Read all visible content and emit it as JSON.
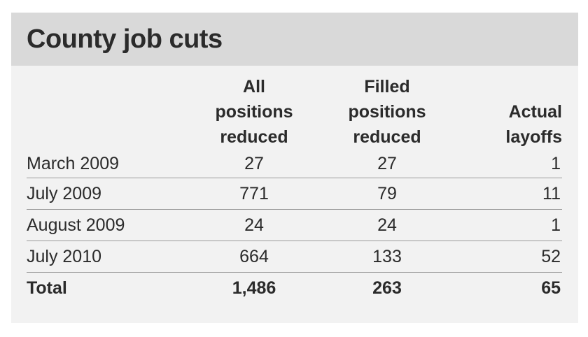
{
  "title": "County job cuts",
  "columns": {
    "all_positions": [
      "All",
      "positions",
      "reduced"
    ],
    "filled_positions": [
      "Filled",
      "positions",
      "reduced"
    ],
    "actual_layoffs": [
      "Actual",
      "layoffs"
    ]
  },
  "rows": [
    {
      "period": "March 2009",
      "all": "27",
      "filled": "27",
      "layoffs": "1"
    },
    {
      "period": "July 2009",
      "all": "771",
      "filled": "79",
      "layoffs": "11"
    },
    {
      "period": "August 2009",
      "all": "24",
      "filled": "24",
      "layoffs": "1"
    },
    {
      "period": "July 2010",
      "all": "664",
      "filled": "133",
      "layoffs": "52"
    }
  ],
  "total": {
    "label": "Total",
    "all": "1,486",
    "filled": "263",
    "layoffs": "65"
  }
}
